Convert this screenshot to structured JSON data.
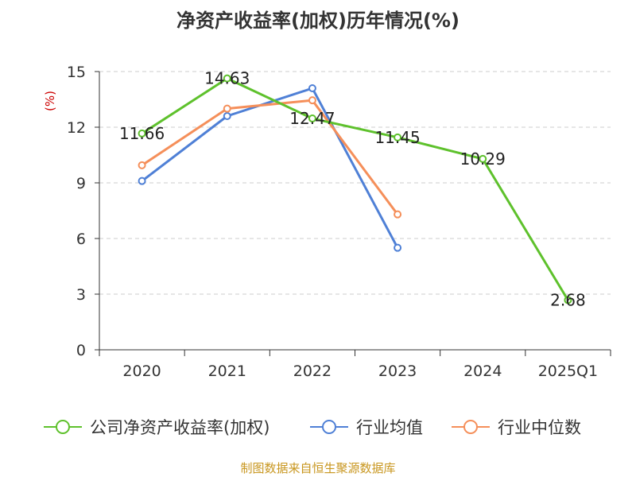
{
  "title": "净资产收益率(加权)历年情况(%)",
  "source": "制图数据来自恒生聚源数据库",
  "chart_data": {
    "type": "line",
    "title": "净资产收益率(加权)历年情况(%)",
    "ylabel": "(%)",
    "xlabel": "",
    "categories": [
      "2020",
      "2021",
      "2022",
      "2023",
      "2024",
      "2025Q1"
    ],
    "ylim": [
      0,
      15
    ],
    "yticks": [
      0,
      3,
      6,
      9,
      12,
      15
    ],
    "grid": true,
    "legend_position": "bottom",
    "series": [
      {
        "name": "公司净资产收益率(加权)",
        "color": "#5ec12c",
        "values": [
          11.66,
          14.63,
          12.47,
          11.45,
          10.29,
          2.68
        ],
        "labels": [
          "11.66",
          "14.63",
          "12.47",
          "11.45",
          "10.29",
          "2.68"
        ]
      },
      {
        "name": "行业均值",
        "color": "#4f80d6",
        "values": [
          9.1,
          12.6,
          14.1,
          5.5,
          null,
          null
        ]
      },
      {
        "name": "行业中位数",
        "color": "#f58f5a",
        "values": [
          9.95,
          13.0,
          13.45,
          7.3,
          null,
          null
        ]
      }
    ]
  }
}
